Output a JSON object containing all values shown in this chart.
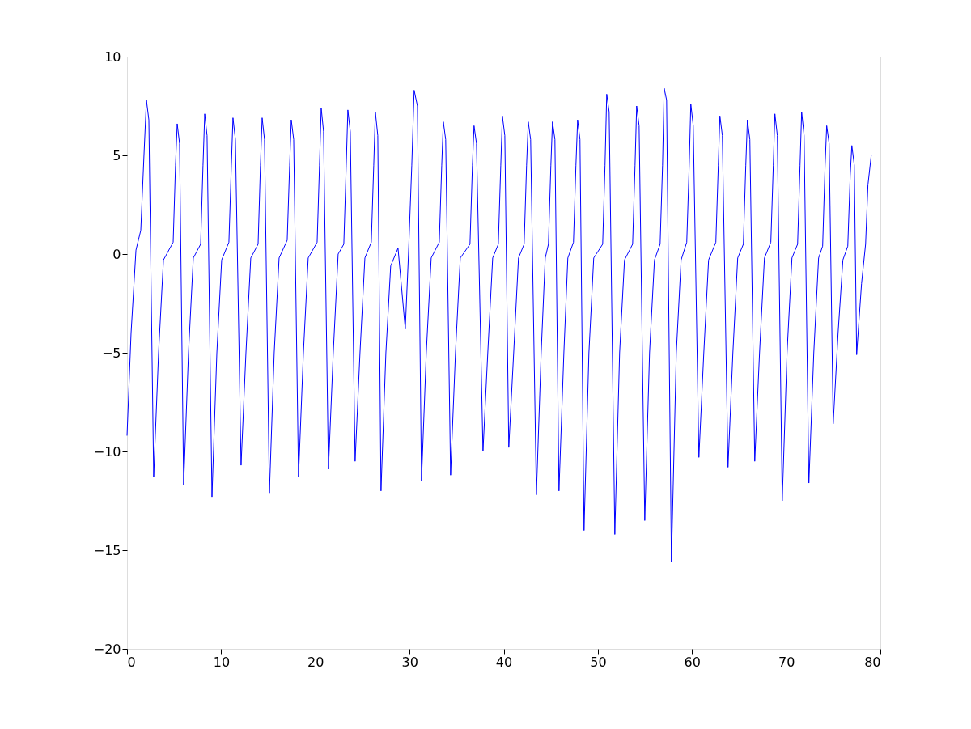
{
  "chart_data": {
    "type": "line",
    "xlim": [
      0,
      80
    ],
    "ylim": [
      -20,
      10
    ],
    "xticks": [
      0,
      10,
      20,
      30,
      40,
      50,
      60,
      70,
      80
    ],
    "yticks": [
      -20,
      -15,
      -10,
      -5,
      0,
      5,
      10
    ],
    "x": [
      0.0,
      0.43,
      0.95,
      1.46,
      1.8,
      2.06,
      2.32,
      2.83,
      3.35,
      3.87,
      4.9,
      5.15,
      5.33,
      5.58,
      6.01,
      6.53,
      7.04,
      7.82,
      8.07,
      8.25,
      8.5,
      9.02,
      9.54,
      10.05,
      10.82,
      11.08,
      11.25,
      11.51,
      12.11,
      12.63,
      13.14,
      13.92,
      14.17,
      14.35,
      14.6,
      15.12,
      15.63,
      16.15,
      17.01,
      17.27,
      17.44,
      17.7,
      18.21,
      18.73,
      19.24,
      20.19,
      20.44,
      20.62,
      20.87,
      21.39,
      21.9,
      22.42,
      23.02,
      23.28,
      23.45,
      23.71,
      24.22,
      24.74,
      25.26,
      25.94,
      26.2,
      26.37,
      26.63,
      26.97,
      27.49,
      28.0,
      28.78,
      29.55,
      29.89,
      30.24,
      30.49,
      30.84,
      31.27,
      31.78,
      32.3,
      33.16,
      33.42,
      33.59,
      33.84,
      34.36,
      34.88,
      35.39,
      36.42,
      36.68,
      36.85,
      37.11,
      37.8,
      38.31,
      38.83,
      39.43,
      39.69,
      39.86,
      40.12,
      40.54,
      41.06,
      41.57,
      42.17,
      42.43,
      42.61,
      42.86,
      43.47,
      43.98,
      44.41,
      44.75,
      45.01,
      45.18,
      45.44,
      45.87,
      46.39,
      46.81,
      47.41,
      47.67,
      47.85,
      48.1,
      48.53,
      49.05,
      49.56,
      50.51,
      50.76,
      50.94,
      51.2,
      51.8,
      52.31,
      52.83,
      53.69,
      53.95,
      54.12,
      54.38,
      54.98,
      55.49,
      56.01,
      56.61,
      56.87,
      57.04,
      57.3,
      57.81,
      58.33,
      58.84,
      59.44,
      59.7,
      59.87,
      60.13,
      60.73,
      61.25,
      61.76,
      62.53,
      62.79,
      62.96,
      63.22,
      63.82,
      64.34,
      64.85,
      65.45,
      65.71,
      65.88,
      66.14,
      66.66,
      67.17,
      67.69,
      68.37,
      68.63,
      68.8,
      69.06,
      69.58,
      70.09,
      70.61,
      71.21,
      71.47,
      71.64,
      71.9,
      72.41,
      72.93,
      73.44,
      73.87,
      74.13,
      74.3,
      74.56,
      74.99,
      75.51,
      76.02,
      76.54,
      76.8,
      76.97,
      77.23,
      77.48,
      78.0,
      78.43,
      78.68,
      79.03
    ],
    "series": [
      {
        "color": "#0000ff",
        "values": [
          -9.2,
          -4.0,
          0.2,
          1.2,
          5.0,
          7.8,
          6.8,
          -11.3,
          -5,
          -0.3,
          0.6,
          4.5,
          6.6,
          5.6,
          -11.7,
          -5,
          -0.2,
          0.5,
          4.5,
          7.1,
          6.0,
          -12.3,
          -5,
          -0.3,
          0.6,
          4.5,
          6.9,
          5.8,
          -10.7,
          -5,
          -0.2,
          0.5,
          4.5,
          6.9,
          5.8,
          -12.1,
          -5,
          -0.2,
          0.7,
          4.5,
          6.8,
          5.8,
          -11.3,
          -5,
          -0.2,
          0.6,
          4.5,
          7.4,
          6.2,
          -10.9,
          -5,
          0.0,
          0.5,
          4.5,
          7.3,
          6.2,
          -10.5,
          -5,
          -0.2,
          0.6,
          4.5,
          7.2,
          6.0,
          -12.0,
          -5,
          -0.6,
          0.3,
          -3.8,
          0.0,
          4.5,
          8.3,
          7.5,
          -11.5,
          -5,
          -0.2,
          0.6,
          4.5,
          6.7,
          5.8,
          -11.2,
          -5,
          -0.2,
          0.5,
          4.5,
          6.5,
          5.6,
          -10.0,
          -5,
          -0.2,
          0.5,
          4.5,
          7.0,
          6.0,
          -9.8,
          -5,
          -0.2,
          0.5,
          4.5,
          6.7,
          5.8,
          -12.2,
          -5,
          -0.2,
          0.5,
          4.5,
          6.7,
          5.8,
          -12.0,
          -5,
          -0.2,
          0.6,
          4.5,
          6.8,
          5.8,
          -14.0,
          -5,
          -0.2,
          0.5,
          4.5,
          8.1,
          7.2,
          -14.2,
          -5,
          -0.3,
          0.5,
          4.5,
          7.5,
          6.5,
          -13.5,
          -5,
          -0.3,
          0.5,
          4.5,
          8.4,
          7.8,
          -15.6,
          -5,
          -0.3,
          0.6,
          4.5,
          7.6,
          6.5,
          -10.3,
          -5,
          -0.3,
          0.6,
          4.5,
          7.0,
          6.0,
          -10.8,
          -5,
          -0.2,
          0.5,
          4.5,
          6.8,
          5.8,
          -10.5,
          -5,
          -0.2,
          0.6,
          4.5,
          7.1,
          6.0,
          -12.5,
          -5,
          -0.2,
          0.5,
          4.5,
          7.2,
          6.0,
          -11.6,
          -5,
          -0.2,
          0.4,
          4.5,
          6.5,
          5.6,
          -8.6,
          -4.0,
          -0.3,
          0.4,
          4.0,
          5.5,
          4.5,
          -5.1,
          -1.5,
          0.5,
          3.5,
          5.0
        ]
      }
    ]
  }
}
